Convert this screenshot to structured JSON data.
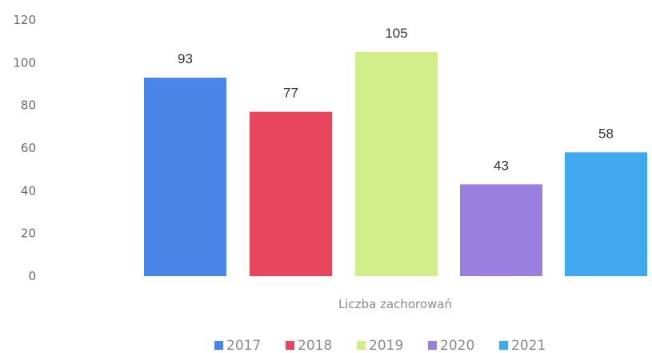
{
  "chart_data": {
    "type": "bar",
    "categories": [
      "Liczba zachorowań"
    ],
    "series": [
      {
        "name": "2017",
        "values": [
          93
        ],
        "color": "#4A86E8"
      },
      {
        "name": "2018",
        "values": [
          77
        ],
        "color": "#E8455F"
      },
      {
        "name": "2019",
        "values": [
          105
        ],
        "color": "#D2EE8A"
      },
      {
        "name": "2020",
        "values": [
          43
        ],
        "color": "#9B7FE0"
      },
      {
        "name": "2021",
        "values": [
          58
        ],
        "color": "#3FA8EE"
      }
    ],
    "ylim": [
      0,
      120
    ],
    "yticks": [
      "0",
      "20",
      "40",
      "60",
      "80",
      "100",
      "120"
    ],
    "grid": false,
    "legend_position": "bottom"
  }
}
